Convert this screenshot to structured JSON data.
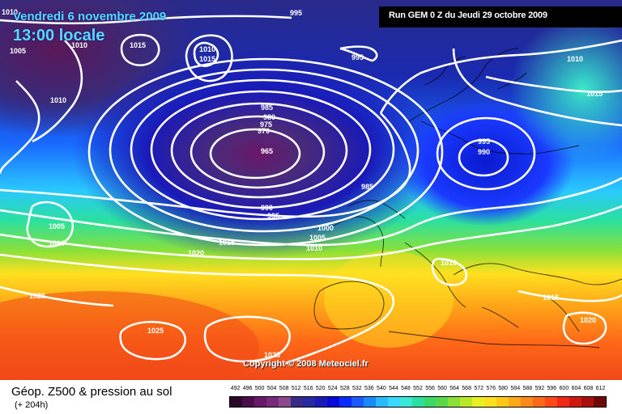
{
  "header": {
    "date": "Vendredi 6 novembre 2009",
    "local_time": "13:00 locale",
    "run_info": "Run GEM 0 Z du Jeudi 29 octobre 2009"
  },
  "map": {
    "copyright": "Copyright © 2008 Meteociel.fr",
    "pressure_labels": [
      "1010",
      "1005",
      "1010",
      "1015",
      "1010",
      "1015",
      "995",
      "995",
      "1010",
      "1015",
      "1010",
      "985",
      "980",
      "975",
      "970",
      "965",
      "985",
      "995",
      "990",
      "1005",
      "1010",
      "990",
      "995",
      "1000",
      "1005",
      "1010",
      "1015",
      "1020",
      "1010",
      "1025",
      "1015",
      "1025",
      "1025",
      "1020"
    ]
  },
  "footer": {
    "title": "Géop. Z500 & pression au sol",
    "subtitle": "(+ 204h)",
    "scale_values": [
      "492",
      "496",
      "500",
      "504",
      "508",
      "512",
      "516",
      "520",
      "524",
      "528",
      "532",
      "536",
      "540",
      "544",
      "548",
      "552",
      "556",
      "560",
      "564",
      "568",
      "572",
      "576",
      "580",
      "584",
      "588",
      "592",
      "596",
      "600",
      "604",
      "608",
      "612"
    ],
    "scale_colors": [
      "#2a0a2a",
      "#4a0f4a",
      "#6a1868",
      "#7a2a7a",
      "#8a4a8a",
      "#3a2a8a",
      "#2a2aa0",
      "#1a1ab8",
      "#0a0ad8",
      "#0a2aff",
      "#1a5aff",
      "#1a8aff",
      "#2ab8ff",
      "#3ad8ff",
      "#3ae8d8",
      "#2ae0a0",
      "#3ad868",
      "#58d848",
      "#8ae038",
      "#b8e828",
      "#e8f020",
      "#ffe020",
      "#ffc818",
      "#ffa818",
      "#ff8818",
      "#ff6818",
      "#ff4818",
      "#f02818",
      "#d01810",
      "#a81010",
      "#700808"
    ]
  }
}
